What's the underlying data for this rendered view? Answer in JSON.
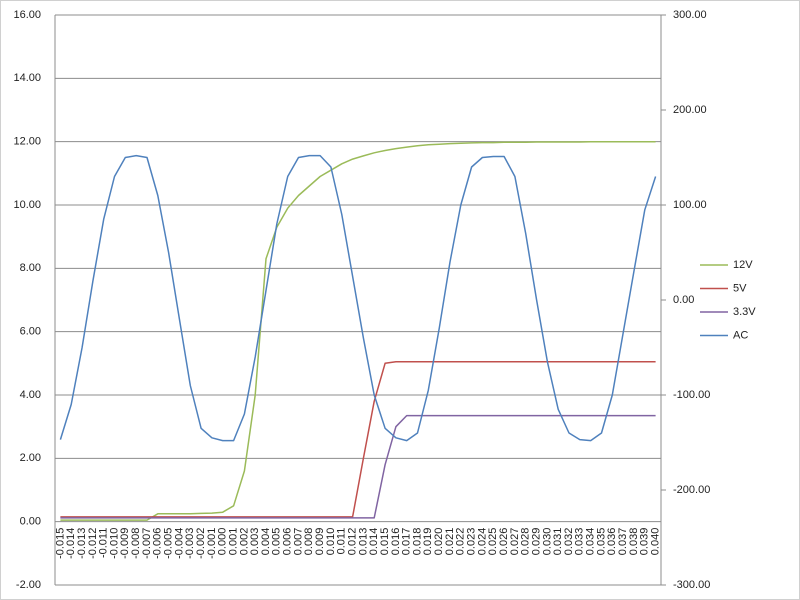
{
  "chart_data": {
    "type": "line",
    "categories": [
      "-0.015",
      "-0.014",
      "-0.013",
      "-0.012",
      "-0.011",
      "-0.010",
      "-0.009",
      "-0.008",
      "-0.007",
      "-0.006",
      "-0.005",
      "-0.004",
      "-0.003",
      "-0.002",
      "-0.001",
      "0.000",
      "0.001",
      "0.002",
      "0.003",
      "0.004",
      "0.005",
      "0.006",
      "0.007",
      "0.008",
      "0.009",
      "0.010",
      "0.011",
      "0.012",
      "0.013",
      "0.014",
      "0.015",
      "0.016",
      "0.017",
      "0.018",
      "0.019",
      "0.020",
      "0.021",
      "0.022",
      "0.023",
      "0.024",
      "0.025",
      "0.026",
      "0.027",
      "0.028",
      "0.029",
      "0.030",
      "0.031",
      "0.032",
      "0.033",
      "0.034",
      "0.035",
      "0.036",
      "0.037",
      "0.038",
      "0.039",
      "0.040"
    ],
    "series": [
      {
        "name": "12V",
        "color": "#9bbb59",
        "values": [
          0.05,
          0.05,
          0.05,
          0.05,
          0.05,
          0.05,
          0.05,
          0.05,
          0.05,
          0.25,
          0.25,
          0.25,
          0.25,
          0.26,
          0.27,
          0.3,
          0.5,
          1.6,
          4,
          8.3,
          9.3,
          9.9,
          10.3,
          10.6,
          10.9,
          11.1,
          11.3,
          11.45,
          11.55,
          11.65,
          11.72,
          11.78,
          11.83,
          11.87,
          11.9,
          11.92,
          11.94,
          11.95,
          11.96,
          11.97,
          11.97,
          11.98,
          11.98,
          11.98,
          11.99,
          11.99,
          11.99,
          11.99,
          11.99,
          12,
          12,
          12,
          12,
          12,
          12,
          12
        ]
      },
      {
        "name": "5V",
        "color": "#c0504d",
        "values": [
          0.15,
          0.15,
          0.15,
          0.15,
          0.15,
          0.15,
          0.15,
          0.15,
          0.15,
          0.15,
          0.15,
          0.15,
          0.15,
          0.15,
          0.15,
          0.15,
          0.15,
          0.15,
          0.15,
          0.15,
          0.15,
          0.15,
          0.15,
          0.15,
          0.15,
          0.15,
          0.15,
          0.15,
          2,
          3.8,
          5,
          5.05,
          5.05,
          5.05,
          5.05,
          5.05,
          5.05,
          5.05,
          5.05,
          5.05,
          5.05,
          5.05,
          5.05,
          5.05,
          5.05,
          5.05,
          5.05,
          5.05,
          5.05,
          5.05,
          5.05,
          5.05,
          5.05,
          5.05,
          5.05,
          5.05
        ]
      },
      {
        "name": "3.3V",
        "color": "#8064a2",
        "values": [
          0.12,
          0.12,
          0.12,
          0.12,
          0.12,
          0.12,
          0.12,
          0.12,
          0.12,
          0.12,
          0.12,
          0.12,
          0.12,
          0.12,
          0.12,
          0.12,
          0.12,
          0.12,
          0.12,
          0.12,
          0.12,
          0.12,
          0.12,
          0.12,
          0.12,
          0.12,
          0.12,
          0.12,
          0.12,
          0.12,
          1.8,
          3,
          3.35,
          3.35,
          3.35,
          3.35,
          3.35,
          3.35,
          3.35,
          3.35,
          3.35,
          3.35,
          3.35,
          3.35,
          3.35,
          3.35,
          3.35,
          3.35,
          3.35,
          3.35,
          3.35,
          3.35,
          3.35,
          3.35,
          3.35,
          3.35
        ]
      },
      {
        "name": "AC",
        "color": "#4f81bd",
        "axis": "y2",
        "values": [
          -147,
          -110,
          -50,
          20,
          85,
          130,
          150,
          152,
          150,
          110,
          50,
          -20,
          -90,
          -135,
          -145,
          -148,
          -148,
          -120,
          -60,
          10,
          80,
          130,
          150,
          152,
          152,
          140,
          90,
          25,
          -40,
          -100,
          -135,
          -145,
          -148,
          -140,
          -95,
          -30,
          40,
          100,
          140,
          150,
          151,
          151,
          130,
          70,
          0,
          -65,
          -115,
          -140,
          -147,
          -148,
          -140,
          -100,
          -35,
          30,
          95,
          130
        ]
      }
    ],
    "ylim": [
      -2,
      16
    ],
    "yticks": [
      {
        "value": -2,
        "label": "-2.00"
      },
      {
        "value": 0,
        "label": "0.00"
      },
      {
        "value": 2,
        "label": "2.00"
      },
      {
        "value": 4,
        "label": "4.00"
      },
      {
        "value": 6,
        "label": "6.00"
      },
      {
        "value": 8,
        "label": "8.00"
      },
      {
        "value": 10,
        "label": "10.00"
      },
      {
        "value": 12,
        "label": "12.00"
      },
      {
        "value": 14,
        "label": "14.00"
      },
      {
        "value": 16,
        "label": "16.00"
      }
    ],
    "y2lim": [
      -300,
      300
    ],
    "y2ticks": [
      {
        "value": -300,
        "label": "-300.00"
      },
      {
        "value": -200,
        "label": "-200.00"
      },
      {
        "value": -100,
        "label": "-100.00"
      },
      {
        "value": 0,
        "label": "0.00"
      },
      {
        "value": 100,
        "label": "100.00"
      },
      {
        "value": 200,
        "label": "200.00"
      },
      {
        "value": 300,
        "label": "300.00"
      }
    ],
    "grid": true,
    "legend": "right"
  }
}
